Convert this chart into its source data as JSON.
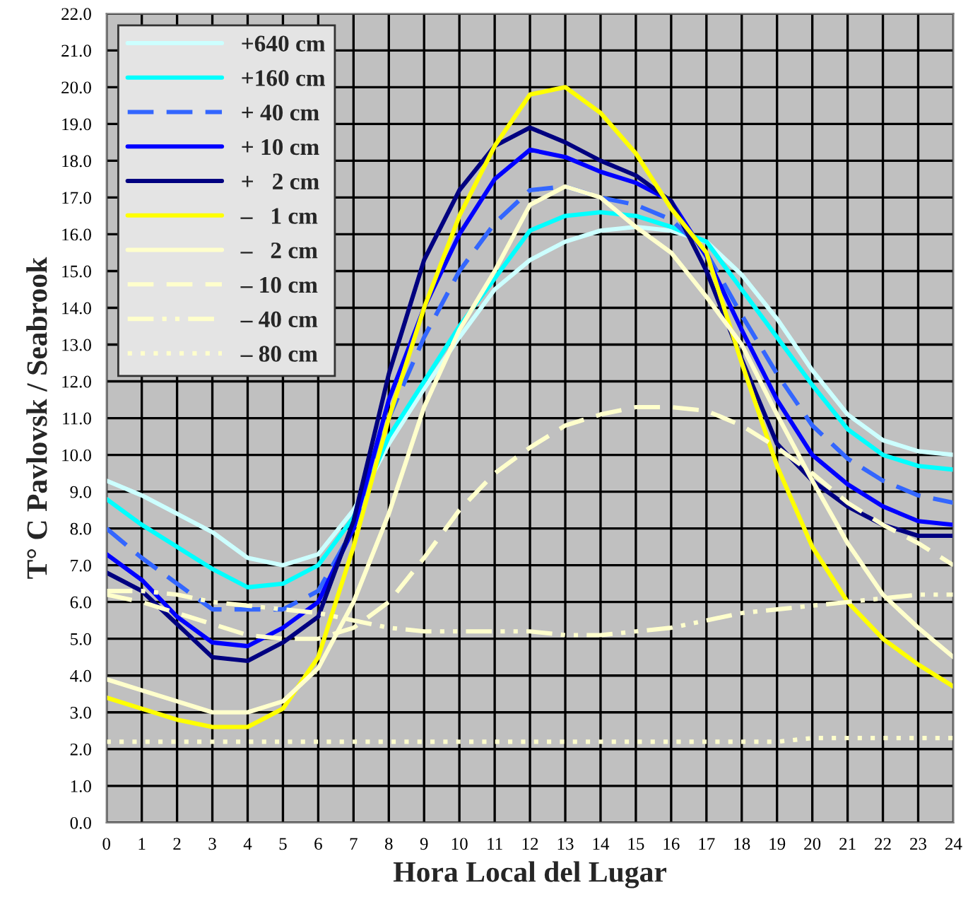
{
  "chart_data": {
    "type": "line",
    "xlabel": "Hora Local del Lugar",
    "ylabel": "T° C Pavlovsk / Seabrook",
    "x": [
      0,
      1,
      2,
      3,
      4,
      5,
      6,
      7,
      8,
      9,
      10,
      11,
      12,
      13,
      14,
      15,
      16,
      17,
      18,
      19,
      20,
      21,
      22,
      23,
      24
    ],
    "xlim": [
      0,
      24
    ],
    "xticks": [
      0,
      1,
      2,
      3,
      4,
      5,
      6,
      7,
      8,
      9,
      10,
      11,
      12,
      13,
      14,
      15,
      16,
      17,
      18,
      19,
      20,
      21,
      22,
      23,
      24
    ],
    "ylim": [
      0,
      22
    ],
    "yticks": [
      {
        "value": 0,
        "label": "0.0"
      },
      {
        "value": 1,
        "label": "1.0"
      },
      {
        "value": 2,
        "label": "2.0"
      },
      {
        "value": 3,
        "label": "3.0"
      },
      {
        "value": 4,
        "label": "4.0"
      },
      {
        "value": 5,
        "label": "5.0"
      },
      {
        "value": 6,
        "label": "6.0"
      },
      {
        "value": 7,
        "label": "7.0"
      },
      {
        "value": 8,
        "label": "8.0"
      },
      {
        "value": 9,
        "label": "9.0"
      },
      {
        "value": 10,
        "label": "10.0"
      },
      {
        "value": 11,
        "label": "11.0"
      },
      {
        "value": 12,
        "label": "12.0"
      },
      {
        "value": 13,
        "label": "13.0"
      },
      {
        "value": 14,
        "label": "14.0"
      },
      {
        "value": 15,
        "label": "15.0"
      },
      {
        "value": 16,
        "label": "16.0"
      },
      {
        "value": 17,
        "label": "17.0"
      },
      {
        "value": 18,
        "label": "18.0"
      },
      {
        "value": 19,
        "label": "19.0"
      },
      {
        "value": 20,
        "label": "20.0"
      },
      {
        "value": 21,
        "label": "21.0"
      },
      {
        "value": 22,
        "label": "22.0"
      }
    ],
    "grid": true,
    "legend": "top left",
    "series": [
      {
        "name": "+640 cm",
        "color": "#ccffff",
        "line_style": "solid",
        "values": [
          9.3,
          8.9,
          8.4,
          7.9,
          7.2,
          7.0,
          7.3,
          8.5,
          10.3,
          11.8,
          13.2,
          14.5,
          15.3,
          15.8,
          16.1,
          16.2,
          16.1,
          15.8,
          14.9,
          13.7,
          12.3,
          11.1,
          10.4,
          10.1,
          10.0
        ]
      },
      {
        "name": "+160 cm",
        "color": "#00ffff",
        "line_style": "solid",
        "values": [
          8.8,
          8.1,
          7.5,
          6.9,
          6.4,
          6.5,
          7.0,
          8.3,
          10.5,
          12.0,
          13.5,
          14.8,
          16.1,
          16.5,
          16.6,
          16.5,
          16.2,
          15.8,
          14.5,
          13.2,
          11.9,
          10.7,
          10.0,
          9.7,
          9.6
        ]
      },
      {
        "name": "+ 40 cm",
        "color": "#3366ff",
        "line_style": "dashed",
        "values": [
          8.0,
          7.2,
          6.5,
          5.8,
          5.8,
          5.8,
          6.3,
          8.0,
          11.0,
          13.2,
          15.0,
          16.3,
          17.2,
          17.3,
          17.0,
          16.8,
          16.4,
          15.5,
          13.8,
          12.2,
          10.8,
          9.9,
          9.3,
          8.9,
          8.7
        ]
      },
      {
        "name": "+ 10 cm",
        "color": "#0000ff",
        "line_style": "solid",
        "values": [
          7.3,
          6.6,
          5.6,
          4.9,
          4.8,
          5.3,
          6.0,
          8.0,
          11.5,
          14.0,
          16.0,
          17.5,
          18.3,
          18.1,
          17.7,
          17.4,
          16.9,
          15.4,
          13.4,
          11.5,
          10.0,
          9.2,
          8.6,
          8.2,
          8.1
        ]
      },
      {
        "name": "+   2 cm",
        "color": "#000080",
        "line_style": "solid",
        "values": [
          6.8,
          6.3,
          5.4,
          4.5,
          4.4,
          4.9,
          5.6,
          8.2,
          12.2,
          15.3,
          17.2,
          18.4,
          18.9,
          18.5,
          18.0,
          17.6,
          16.9,
          15.0,
          12.6,
          10.3,
          9.3,
          8.6,
          8.1,
          7.8,
          7.8
        ]
      },
      {
        "name": "–   1 cm",
        "color": "#ffff00",
        "line_style": "solid",
        "values": [
          3.4,
          3.1,
          2.8,
          2.6,
          2.6,
          3.1,
          4.5,
          7.5,
          11.0,
          14.0,
          16.5,
          18.4,
          19.8,
          20.0,
          19.3,
          18.2,
          16.7,
          15.5,
          12.5,
          9.7,
          7.5,
          6.0,
          5.0,
          4.3,
          3.7
        ]
      },
      {
        "name": "–   2 cm",
        "color": "#ffffcc",
        "line_style": "solid",
        "values": [
          3.9,
          3.6,
          3.3,
          3.0,
          3.0,
          3.3,
          4.2,
          6.0,
          8.4,
          11.3,
          13.4,
          15.0,
          16.8,
          17.3,
          17.0,
          16.2,
          15.5,
          14.3,
          13.0,
          11.1,
          9.3,
          7.6,
          6.2,
          5.3,
          4.5
        ]
      },
      {
        "name": "– 10 cm",
        "color": "#ffffcc",
        "line_style": "dashed",
        "values": [
          6.2,
          6.0,
          5.7,
          5.4,
          5.1,
          5.0,
          5.0,
          5.3,
          6.0,
          7.2,
          8.5,
          9.5,
          10.2,
          10.8,
          11.1,
          11.3,
          11.3,
          11.2,
          10.8,
          10.2,
          9.5,
          8.7,
          8.1,
          7.6,
          7.0
        ]
      },
      {
        "name": "– 40 cm",
        "color": "#ffffcc",
        "line_style": "dashdot",
        "values": [
          6.3,
          6.3,
          6.2,
          6.0,
          5.9,
          5.8,
          5.7,
          5.5,
          5.3,
          5.2,
          5.2,
          5.2,
          5.2,
          5.1,
          5.1,
          5.2,
          5.3,
          5.5,
          5.7,
          5.8,
          5.9,
          6.0,
          6.1,
          6.2,
          6.2
        ]
      },
      {
        "name": "– 80 cm",
        "color": "#ffffcc",
        "line_style": "dotted",
        "values": [
          2.2,
          2.2,
          2.2,
          2.2,
          2.2,
          2.2,
          2.2,
          2.2,
          2.2,
          2.2,
          2.2,
          2.2,
          2.2,
          2.2,
          2.2,
          2.2,
          2.2,
          2.2,
          2.2,
          2.2,
          2.3,
          2.3,
          2.3,
          2.3,
          2.3
        ]
      }
    ]
  }
}
